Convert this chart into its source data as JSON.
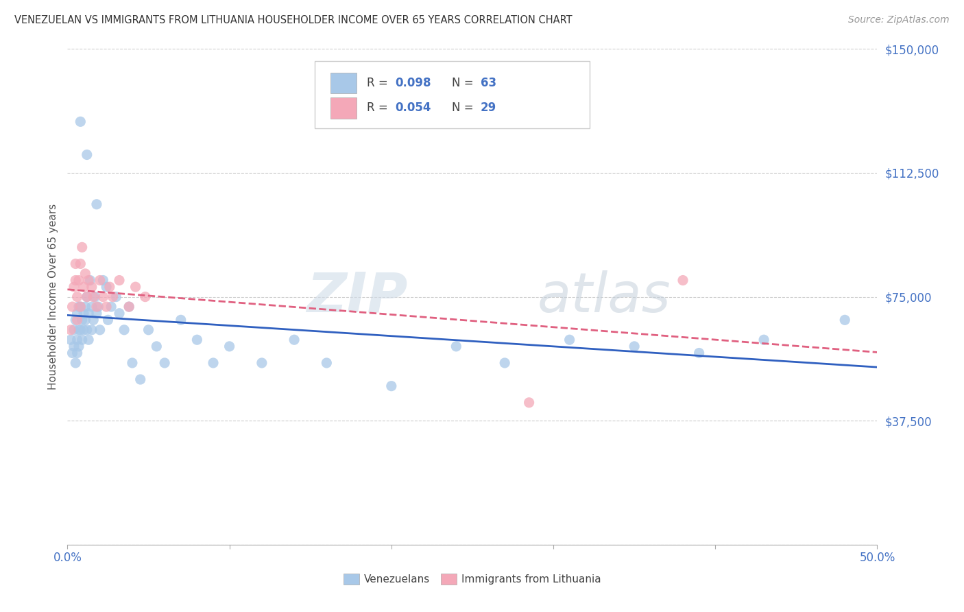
{
  "title": "VENEZUELAN VS IMMIGRANTS FROM LITHUANIA HOUSEHOLDER INCOME OVER 65 YEARS CORRELATION CHART",
  "source": "Source: ZipAtlas.com",
  "legend_labels": [
    "Venezuelans",
    "Immigrants from Lithuania"
  ],
  "ylabel": "Householder Income Over 65 years",
  "watermark": "ZIPatlas",
  "xlim": [
    0.0,
    0.5
  ],
  "ylim": [
    0,
    150000
  ],
  "yticks": [
    0,
    37500,
    75000,
    112500,
    150000
  ],
  "ytick_labels": [
    "",
    "$37,500",
    "$75,000",
    "$112,500",
    "$150,000"
  ],
  "xticks": [
    0.0,
    0.1,
    0.2,
    0.3,
    0.4,
    0.5
  ],
  "xtick_labels": [
    "0.0%",
    "",
    "",
    "",
    "",
    "50.0%"
  ],
  "legend_r1": "0.098",
  "legend_n1": "63",
  "legend_r2": "0.054",
  "legend_n2": "29",
  "blue_color": "#a8c8e8",
  "pink_color": "#f4a8b8",
  "blue_line_color": "#3060c0",
  "pink_line_color": "#e06080",
  "tick_label_color": "#4472c4",
  "venezuelan_x": [
    0.002,
    0.003,
    0.004,
    0.004,
    0.005,
    0.005,
    0.006,
    0.006,
    0.006,
    0.007,
    0.007,
    0.007,
    0.008,
    0.008,
    0.009,
    0.009,
    0.01,
    0.01,
    0.011,
    0.011,
    0.012,
    0.012,
    0.013,
    0.013,
    0.014,
    0.015,
    0.015,
    0.016,
    0.017,
    0.018,
    0.019,
    0.02,
    0.022,
    0.024,
    0.025,
    0.027,
    0.03,
    0.032,
    0.035,
    0.038,
    0.04,
    0.045,
    0.05,
    0.055,
    0.06,
    0.07,
    0.08,
    0.09,
    0.1,
    0.12,
    0.14,
    0.16,
    0.2,
    0.24,
    0.27,
    0.31,
    0.35,
    0.39,
    0.43,
    0.48,
    0.008,
    0.012,
    0.018
  ],
  "venezuelan_y": [
    62000,
    58000,
    65000,
    60000,
    55000,
    68000,
    62000,
    70000,
    58000,
    65000,
    72000,
    60000,
    65000,
    72000,
    68000,
    62000,
    70000,
    65000,
    68000,
    72000,
    75000,
    65000,
    70000,
    62000,
    80000,
    72000,
    65000,
    68000,
    75000,
    70000,
    72000,
    65000,
    80000,
    78000,
    68000,
    72000,
    75000,
    70000,
    65000,
    72000,
    55000,
    50000,
    65000,
    60000,
    55000,
    68000,
    62000,
    55000,
    60000,
    55000,
    62000,
    55000,
    48000,
    60000,
    55000,
    62000,
    60000,
    58000,
    62000,
    68000,
    128000,
    118000,
    103000
  ],
  "lithuania_x": [
    0.002,
    0.003,
    0.004,
    0.005,
    0.005,
    0.006,
    0.006,
    0.007,
    0.008,
    0.008,
    0.009,
    0.01,
    0.011,
    0.012,
    0.013,
    0.015,
    0.016,
    0.018,
    0.02,
    0.022,
    0.024,
    0.026,
    0.028,
    0.032,
    0.038,
    0.042,
    0.048,
    0.285,
    0.38
  ],
  "lithuania_y": [
    65000,
    72000,
    78000,
    80000,
    85000,
    68000,
    75000,
    80000,
    72000,
    85000,
    90000,
    78000,
    82000,
    75000,
    80000,
    78000,
    75000,
    72000,
    80000,
    75000,
    72000,
    78000,
    75000,
    80000,
    72000,
    78000,
    75000,
    43000,
    80000
  ]
}
